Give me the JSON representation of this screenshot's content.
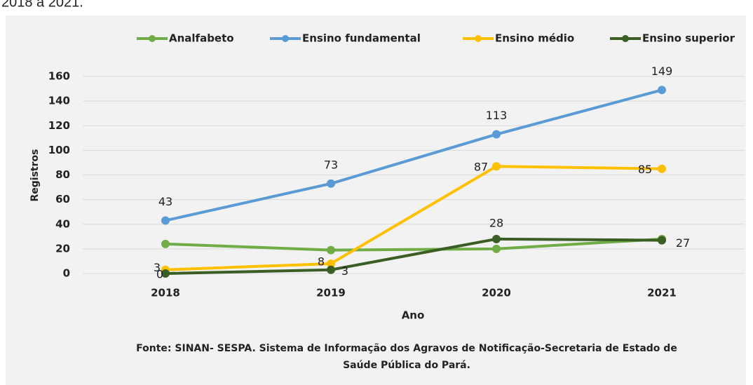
{
  "caption_top": "2018 a 2021.",
  "chart_data": {
    "type": "line",
    "categories": [
      "2018",
      "2019",
      "2020",
      "2021"
    ],
    "series": [
      {
        "name": "Analfabeto",
        "color": "#70ad47",
        "values": [
          24,
          19,
          20,
          28
        ],
        "show_labels": false
      },
      {
        "name": "Ensino fundamental",
        "color": "#5b9bd5",
        "values": [
          43,
          73,
          113,
          149
        ],
        "show_labels": true
      },
      {
        "name": "Ensino médio",
        "color": "#ffc000",
        "values": [
          3,
          8,
          87,
          85
        ],
        "show_labels": true
      },
      {
        "name": "Ensino superior",
        "color": "#3b5e24",
        "values": [
          0,
          3,
          28,
          27
        ],
        "show_labels": true
      }
    ],
    "ylim": [
      0,
      160
    ],
    "yticks": [
      0,
      20,
      40,
      60,
      80,
      100,
      120,
      140,
      160
    ],
    "grid": true,
    "legend": "top",
    "xlabel": "Ano",
    "ylabel": "Registros",
    "source": [
      "Fonte: SINAN- SESPA. Sistema de Informação dos Agravos de Notificação-Secretaria de Estado de",
      "Saúde Pública do Pará."
    ]
  }
}
